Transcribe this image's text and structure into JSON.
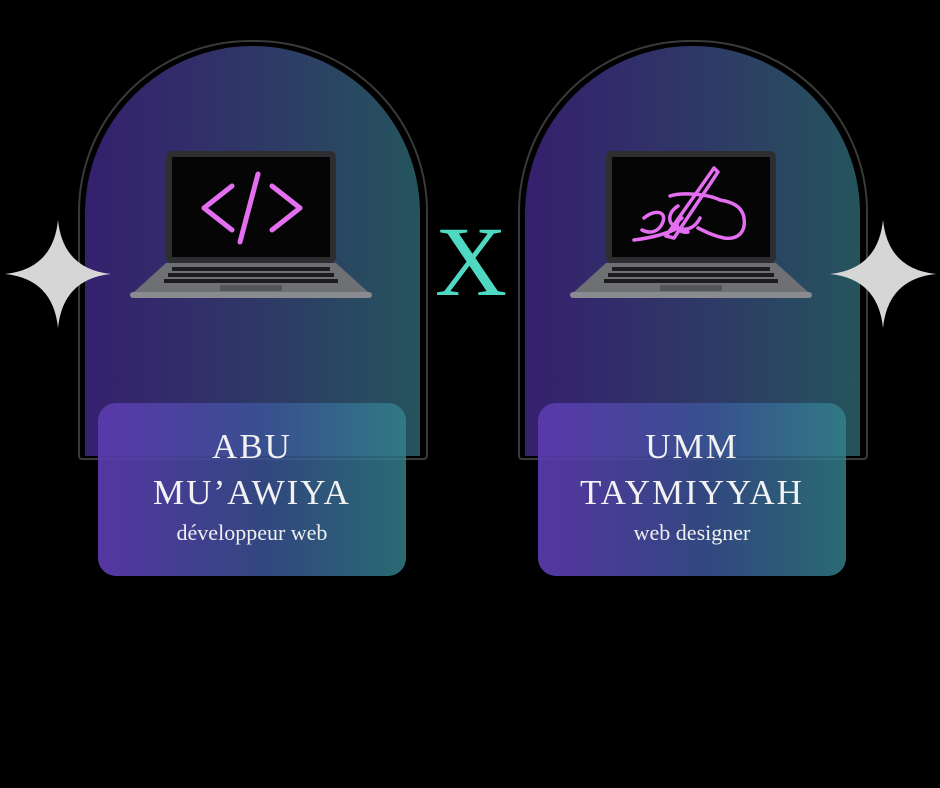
{
  "colors": {
    "background": "#000000",
    "neon_pink": "#e36ef0",
    "x_accent": "#4fd9c2",
    "sparkle": "#d6d6d6"
  },
  "left": {
    "icon": "code-brackets-icon",
    "name_line1": "ABU",
    "name_line2": "MU’AWIYA",
    "role": "développeur web"
  },
  "center": {
    "symbol": "X"
  },
  "right": {
    "icon": "hand-writing-icon",
    "name_line1": "UMM",
    "name_line2": "TAYMIYYAH",
    "role": "web designer"
  }
}
